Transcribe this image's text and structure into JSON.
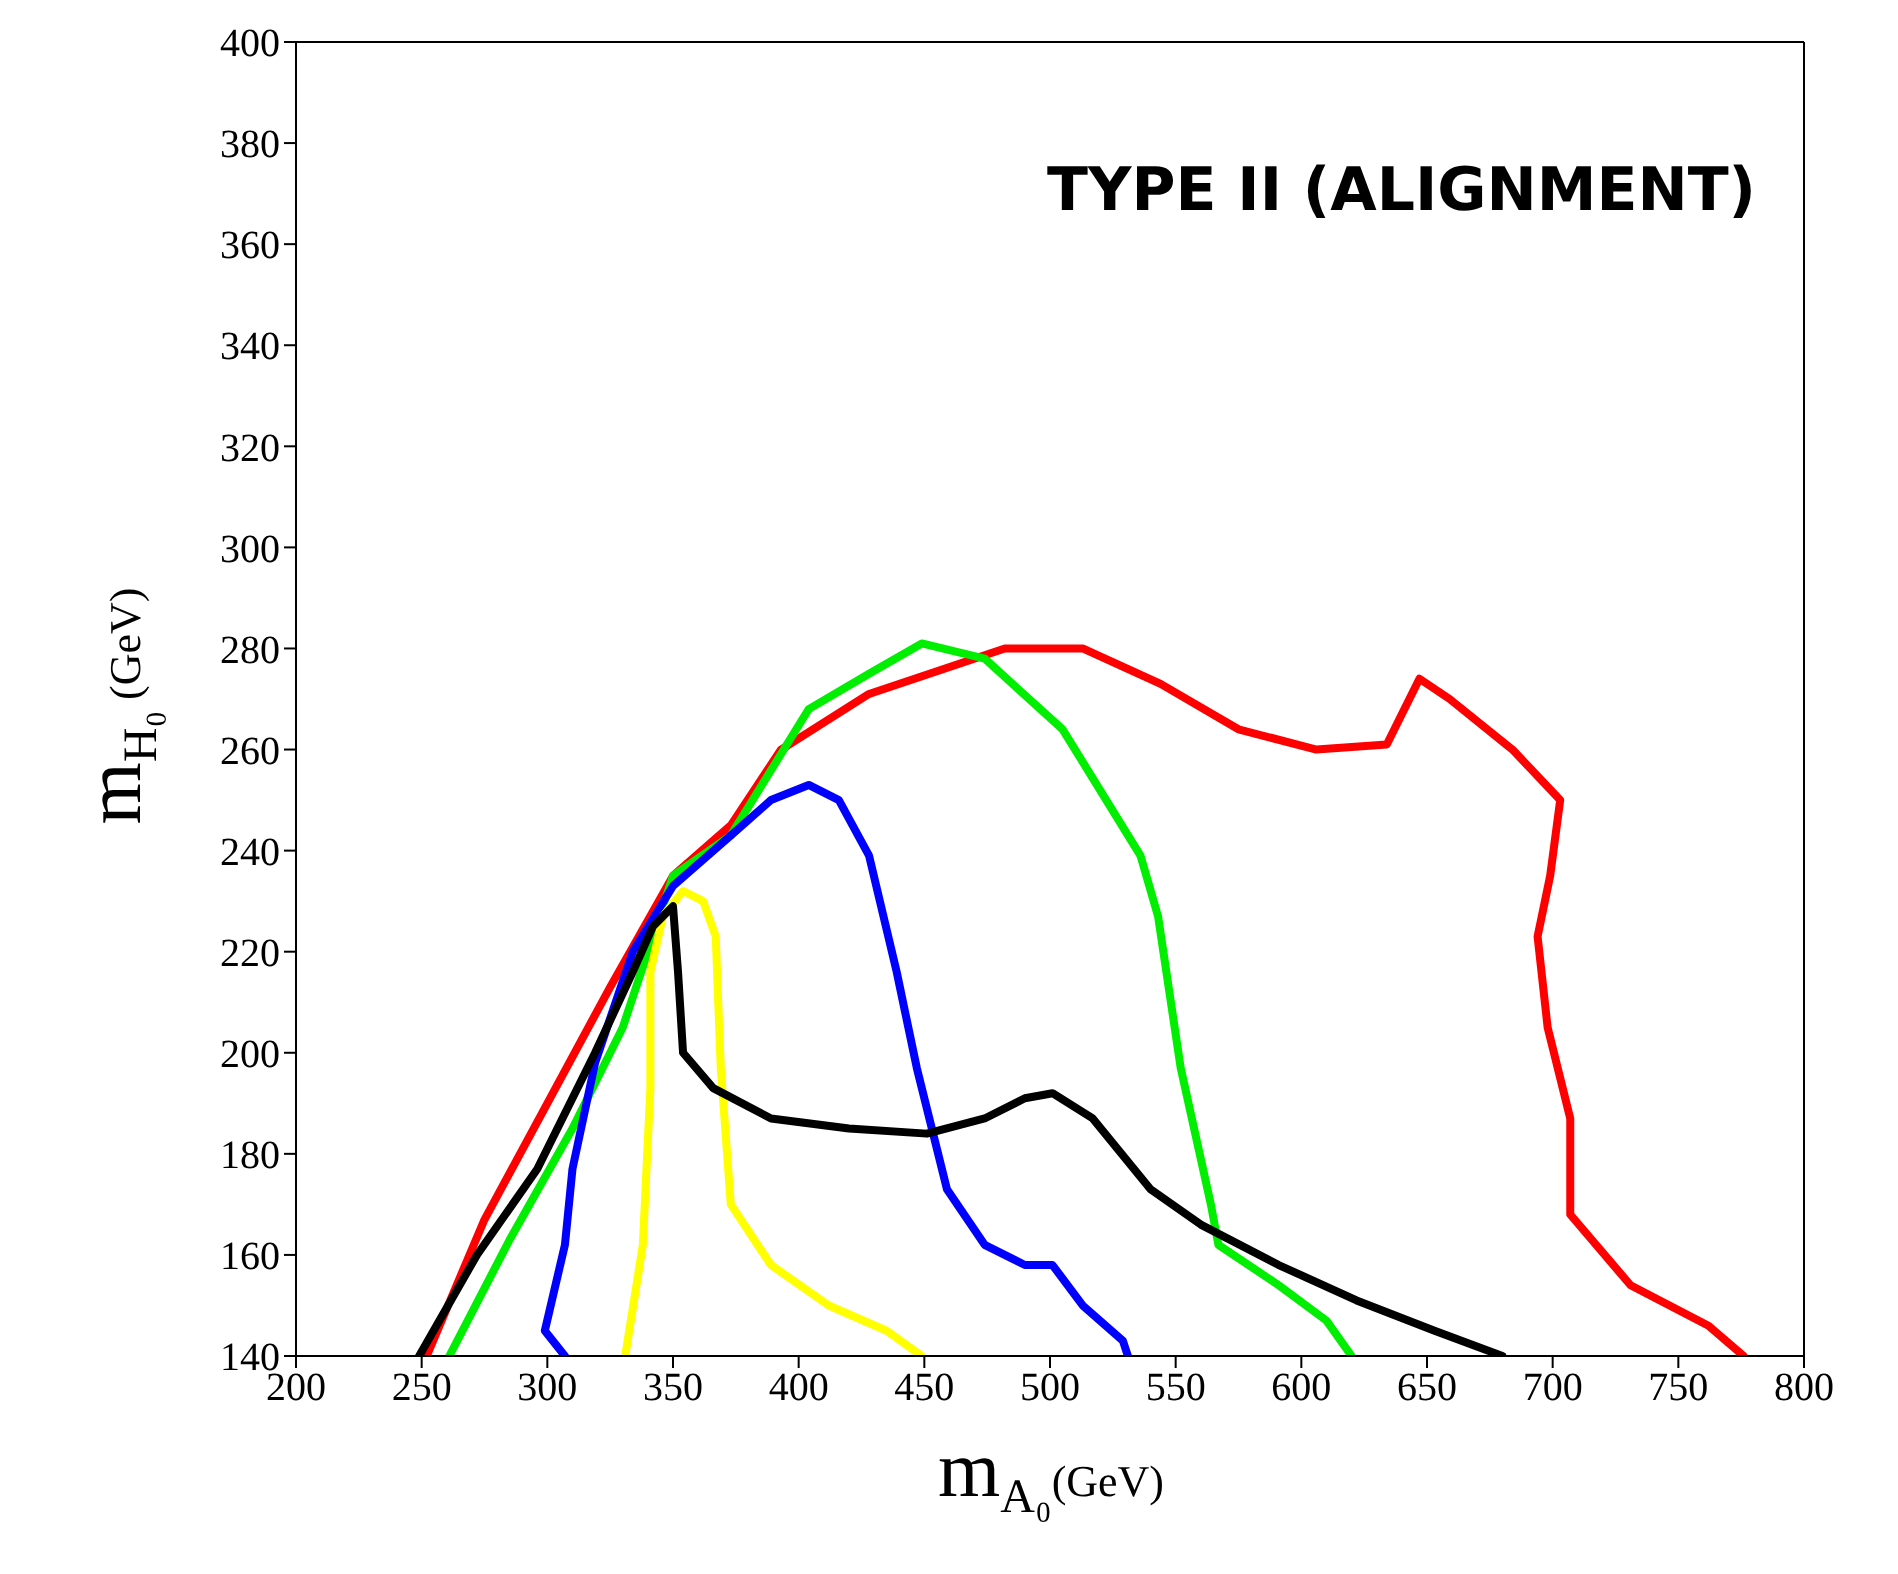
{
  "chart_data": {
    "type": "line",
    "xlabel": "m$_{A₀}$(GeV)",
    "ylabel": "m$_{H₀}$ (GeV)",
    "annotations": [
      "TYPE II (ALIGNMENT)"
    ],
    "xlim": [
      200,
      800
    ],
    "ylim": [
      140,
      400
    ],
    "xticks": [
      200,
      250,
      300,
      350,
      400,
      450,
      500,
      550,
      600,
      650,
      700,
      750,
      800
    ],
    "yticks": [
      140,
      160,
      180,
      200,
      220,
      240,
      260,
      280,
      300,
      320,
      340,
      360,
      380,
      400
    ],
    "legend": false,
    "marker": "none",
    "line_style": "solid",
    "series": [
      {
        "color": "#ff0000",
        "x": [
          252,
          275,
          300,
          325,
          350,
          373,
          393,
          428,
          482,
          513,
          544,
          575,
          606,
          634,
          647,
          659,
          684,
          703,
          699,
          694,
          698,
          707,
          707,
          731,
          762,
          776
        ],
        "values": [
          140,
          167,
          190,
          213,
          235,
          245,
          260,
          271,
          280,
          280,
          273,
          264,
          260,
          261,
          274,
          270,
          260,
          250,
          235,
          223,
          205,
          187,
          168,
          154,
          146,
          140
        ]
      },
      {
        "color": "#00ee00",
        "x": [
          261,
          285,
          310,
          330,
          350,
          373,
          404,
          428,
          449,
          474,
          505,
          536,
          543,
          552,
          564,
          567,
          591,
          610,
          620
        ],
        "values": [
          140,
          163,
          185,
          205,
          235,
          243,
          268,
          275,
          281,
          278,
          264,
          239,
          227,
          197,
          170,
          162,
          154,
          147,
          140
        ]
      },
      {
        "color": "#0000ff",
        "x": [
          307,
          299,
          307,
          310,
          319,
          334,
          350,
          373,
          389,
          404,
          416,
          428,
          439,
          447,
          459,
          474,
          490,
          501,
          513,
          529,
          531
        ],
        "values": [
          140,
          145,
          162,
          177,
          198,
          220,
          233,
          243,
          250,
          253,
          250,
          239,
          216,
          197,
          173,
          162,
          158,
          158,
          150,
          143,
          140
        ]
      },
      {
        "color": "#ffff00",
        "x": [
          331,
          338,
          341,
          341,
          346,
          354,
          362,
          367,
          369,
          373,
          389,
          412,
          435,
          449
        ],
        "values": [
          140,
          162,
          193,
          216,
          227,
          232,
          230,
          223,
          197,
          170,
          158,
          150,
          145,
          140
        ]
      },
      {
        "color": "#000000",
        "x": [
          249,
          272,
          296,
          319,
          334,
          342,
          350,
          352,
          354,
          366,
          389,
          420,
          451,
          474,
          490,
          501,
          517,
          540,
          560,
          591,
          622,
          653,
          680
        ],
        "values": [
          140,
          160,
          177,
          200,
          216,
          225,
          229,
          216,
          200,
          193,
          187,
          185,
          184,
          187,
          191,
          192,
          187,
          173,
          166,
          158,
          151,
          145,
          140
        ]
      }
    ]
  }
}
